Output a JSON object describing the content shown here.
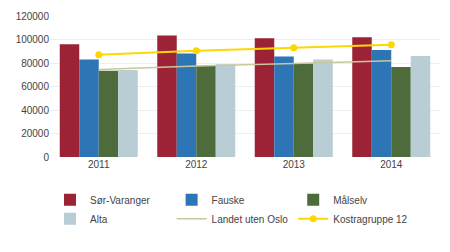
{
  "chart_data": {
    "type": "bar",
    "categories": [
      "2011",
      "2012",
      "2013",
      "2014"
    ],
    "series": [
      {
        "name": "Sør-Varanger",
        "type": "bar",
        "color": "#9B2335",
        "values": [
          96000,
          103500,
          101000,
          102000
        ]
      },
      {
        "name": "Fauske",
        "type": "bar",
        "color": "#2E75B6",
        "values": [
          83000,
          88000,
          85500,
          91000
        ]
      },
      {
        "name": "Målselv",
        "type": "bar",
        "color": "#4E6B3C",
        "values": [
          73500,
          77500,
          79500,
          76500
        ]
      },
      {
        "name": "Alta",
        "type": "bar",
        "color": "#B8CDD4",
        "values": [
          74000,
          79000,
          83000,
          86000
        ]
      },
      {
        "name": "Landet uten Oslo",
        "type": "line",
        "color": "#C8C89B",
        "values": [
          74500,
          77500,
          79500,
          82000
        ]
      },
      {
        "name": "Kostragruppe 12",
        "type": "line",
        "color": "#FFD700",
        "marker": "circle",
        "values": [
          87000,
          90500,
          93000,
          95500
        ]
      }
    ],
    "ylim": [
      0,
      120000
    ],
    "yticks": [
      0,
      20000,
      40000,
      60000,
      80000,
      100000,
      120000
    ],
    "grid": true,
    "legend": "bottom"
  }
}
